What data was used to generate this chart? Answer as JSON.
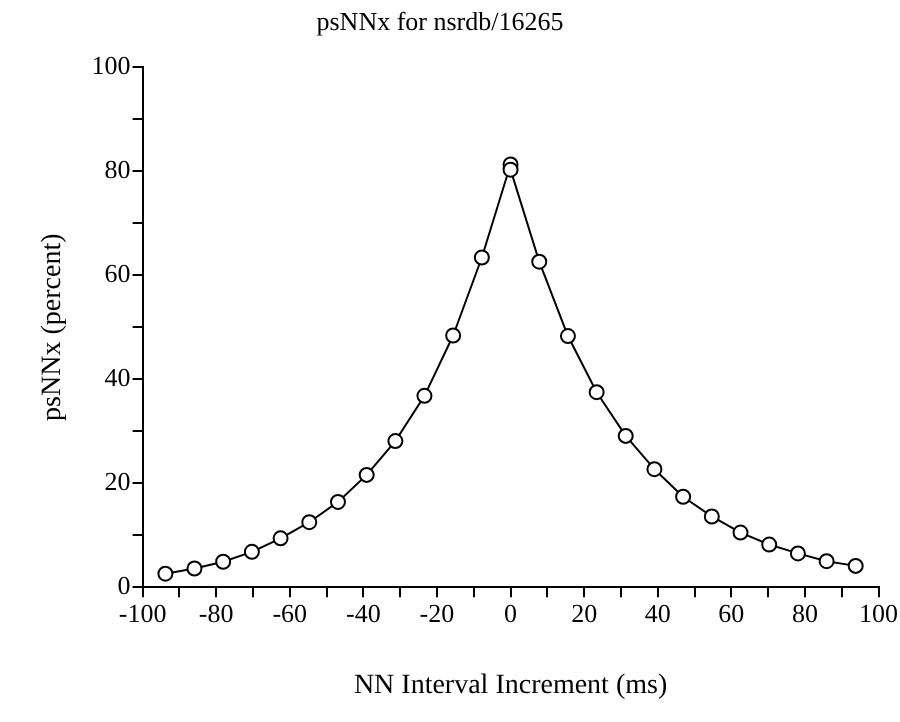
{
  "chart_data": {
    "type": "line",
    "title": "psNNx for nsrdb/16265",
    "xlabel": "NN Interval Increment (ms)",
    "ylabel": "psNNx (percent)",
    "x": [
      -93.8,
      -85.9,
      -78.1,
      -70.3,
      -62.5,
      -54.7,
      -46.9,
      -39.1,
      -31.3,
      -23.4,
      -15.6,
      -7.8,
      0,
      0,
      7.8,
      15.6,
      23.4,
      31.3,
      39.1,
      46.9,
      54.7,
      62.5,
      70.3,
      78.1,
      85.9,
      93.8
    ],
    "series": [
      {
        "color": "#000000",
        "values": [
          2.6,
          3.6,
          4.9,
          6.8,
          9.4,
          12.5,
          16.4,
          21.6,
          28.1,
          36.8,
          48.4,
          63.4,
          81.3,
          80.3,
          62.6,
          48.3,
          37.5,
          29.1,
          22.7,
          17.4,
          13.6,
          10.5,
          8.2,
          6.5,
          5.0,
          4.1
        ]
      }
    ],
    "xlim": [
      -100,
      100
    ],
    "ylim": [
      0,
      100
    ],
    "xticks": [
      -100,
      {
        "value": -90,
        "label": null
      },
      -80,
      {
        "value": -70,
        "label": null
      },
      -60,
      {
        "value": -50,
        "label": null
      },
      -40,
      {
        "value": -30,
        "label": null
      },
      -20,
      {
        "value": -10,
        "label": null
      },
      0,
      {
        "value": 10,
        "label": null
      },
      20,
      {
        "value": 30,
        "label": null
      },
      40,
      {
        "value": 50,
        "label": null
      },
      60,
      {
        "value": 70,
        "label": null
      },
      80,
      {
        "value": 90,
        "label": null
      },
      100
    ],
    "yticks": [
      0,
      {
        "value": 10,
        "label": null
      },
      20,
      {
        "value": 30,
        "label": null
      },
      40,
      {
        "value": 50,
        "label": null
      },
      60,
      {
        "value": 70,
        "label": null
      },
      80,
      {
        "value": 90,
        "label": null
      },
      100
    ],
    "grid": false,
    "legend": false,
    "marker": "circle",
    "line_style": "solid"
  }
}
